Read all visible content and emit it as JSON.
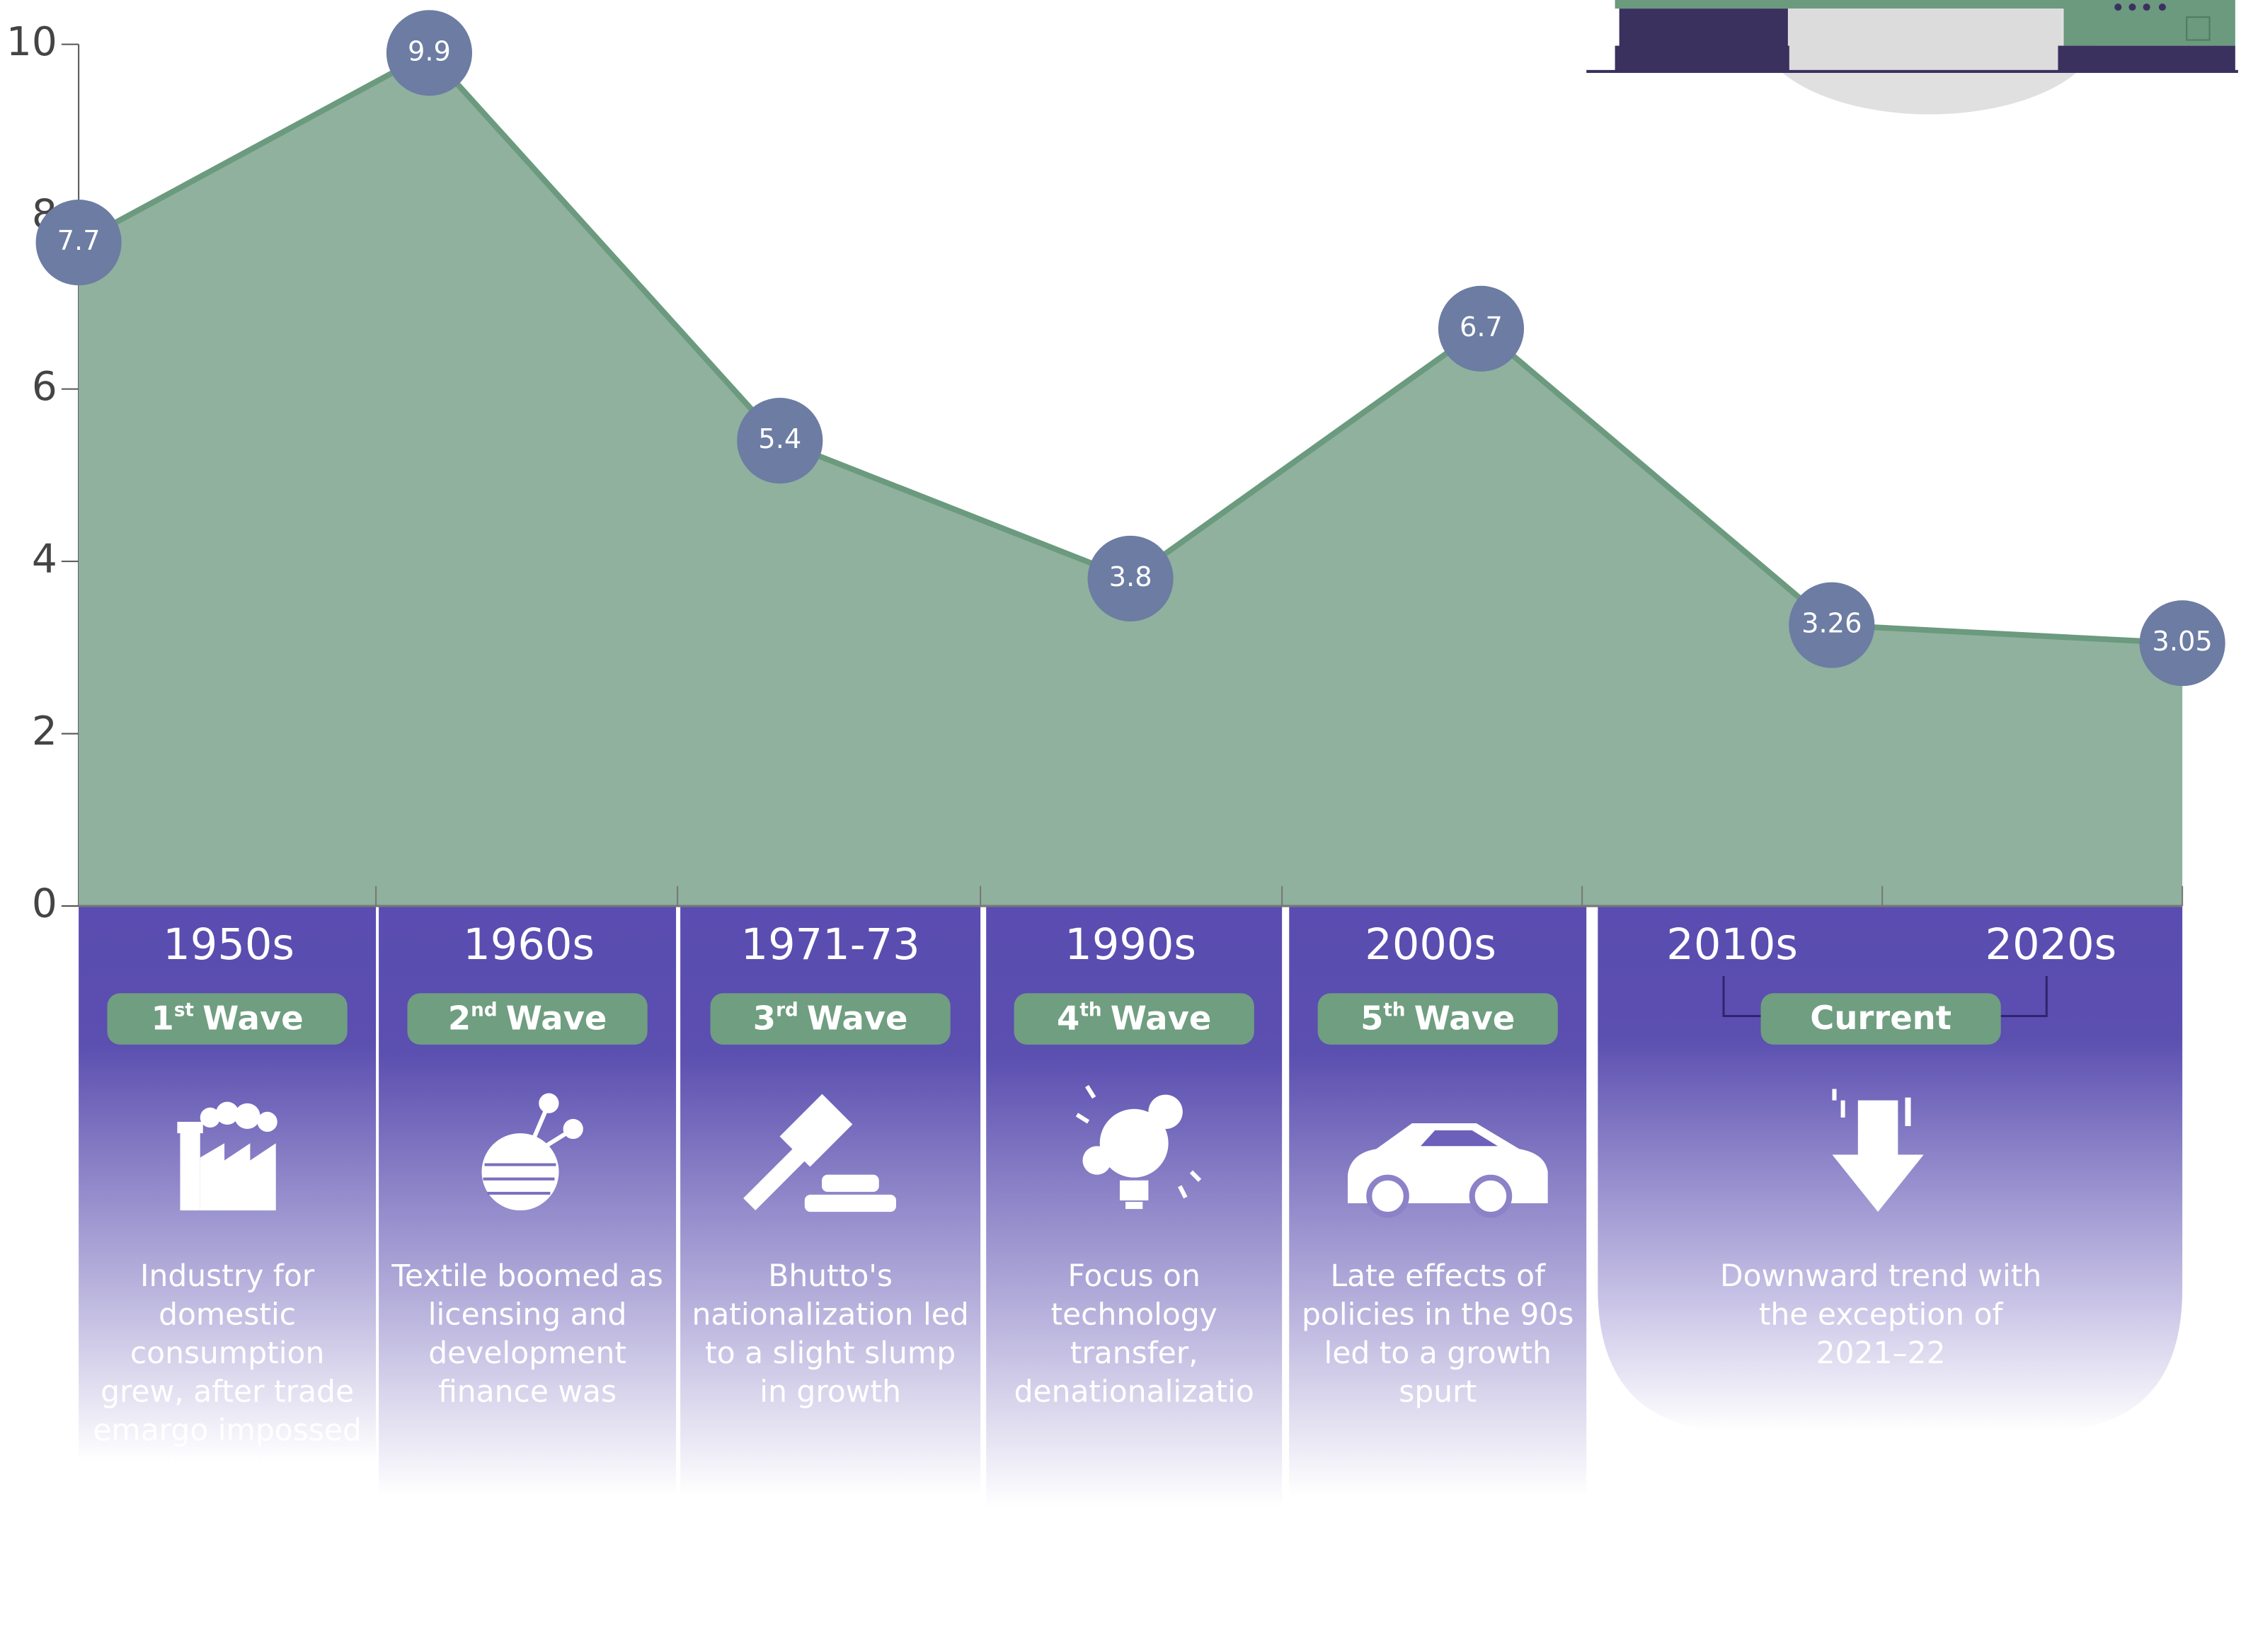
{
  "chart_data": {
    "type": "area",
    "categories": [
      "1950s",
      "1960s",
      "1971-73",
      "1990s",
      "2000s",
      "2010s",
      "2020s"
    ],
    "values": [
      7.7,
      9.9,
      5.4,
      3.8,
      6.7,
      3.26,
      3.05
    ],
    "color": "#8fb19e",
    "line_color": "#6b9a7e",
    "marker_color": "#6c7ca3",
    "ylim": [
      0,
      10
    ],
    "yticks": [
      0,
      2,
      4,
      6,
      8,
      10
    ]
  },
  "cards": [
    {
      "ordinal": "1",
      "suffix": "st",
      "word": "Wave",
      "text": "Industry for domestic consumption grew, after trade emargo impossed by India"
    },
    {
      "ordinal": "2",
      "suffix": "nd",
      "word": "Wave",
      "text": "Textile boomed as licensing and development finance was"
    },
    {
      "ordinal": "3",
      "suffix": "rd",
      "word": "Wave",
      "text": "Bhutto's nationalization led to a slight slump in growth"
    },
    {
      "ordinal": "4",
      "suffix": "th",
      "word": "Wave",
      "text": "Focus on technology transfer, denationalizatio"
    },
    {
      "ordinal": "5",
      "suffix": "th",
      "word": "Wave",
      "text": "Late effects of policies in the 90s led to a growth spurt"
    }
  ],
  "current": {
    "label": "Current",
    "text": "Downward trend with the exception of 2021–22"
  }
}
